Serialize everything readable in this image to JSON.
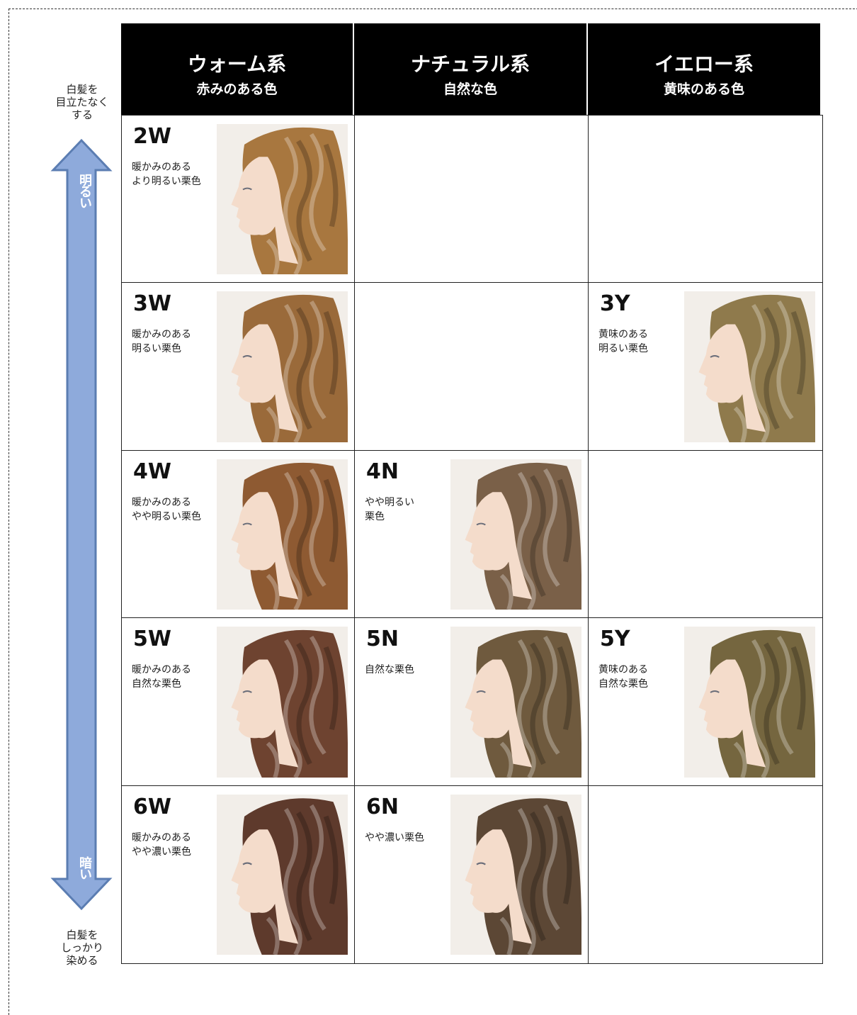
{
  "axis": {
    "top": [
      "白髪を",
      "目立たなく",
      "する"
    ],
    "bright": "明るい",
    "dark": "暗い",
    "bottom": [
      "白髪を",
      "しっかり",
      "染める"
    ]
  },
  "columns": [
    {
      "title": "ウォーム系",
      "subtitle": "赤みのある色"
    },
    {
      "title": "ナチュラル系",
      "subtitle": "自然な色"
    },
    {
      "title": "イエロー系",
      "subtitle": "黄味のある色"
    }
  ],
  "rows": [
    [
      {
        "code": "2W",
        "desc": [
          "暖かみのある",
          "より明るい栗色"
        ],
        "hair_color": "#a8773f"
      },
      null,
      null
    ],
    [
      {
        "code": "3W",
        "desc": [
          "暖かみのある",
          "明るい栗色"
        ],
        "hair_color": "#9a6a3a"
      },
      null,
      {
        "code": "3Y",
        "desc": [
          "黄味のある",
          "明るい栗色"
        ],
        "hair_color": "#8f7a4c"
      }
    ],
    [
      {
        "code": "4W",
        "desc": [
          "暖かみのある",
          "やや明るい栗色"
        ],
        "hair_color": "#8e5a32"
      },
      {
        "code": "4N",
        "desc": [
          "やや明るい",
          "栗色"
        ],
        "hair_color": "#7a6048"
      },
      null
    ],
    [
      {
        "code": "5W",
        "desc": [
          "暖かみのある",
          "自然な栗色"
        ],
        "hair_color": "#6e4330"
      },
      {
        "code": "5N",
        "desc": [
          "自然な栗色"
        ],
        "hair_color": "#6f5a3e"
      },
      {
        "code": "5Y",
        "desc": [
          "黄味のある",
          "自然な栗色"
        ],
        "hair_color": "#75663f"
      }
    ],
    [
      {
        "code": "6W",
        "desc": [
          "暖かみのある",
          "やや濃い栗色"
        ],
        "hair_color": "#5e3a2c"
      },
      {
        "code": "6N",
        "desc": [
          "やや濃い栗色"
        ],
        "hair_color": "#5c4735"
      },
      null
    ]
  ]
}
